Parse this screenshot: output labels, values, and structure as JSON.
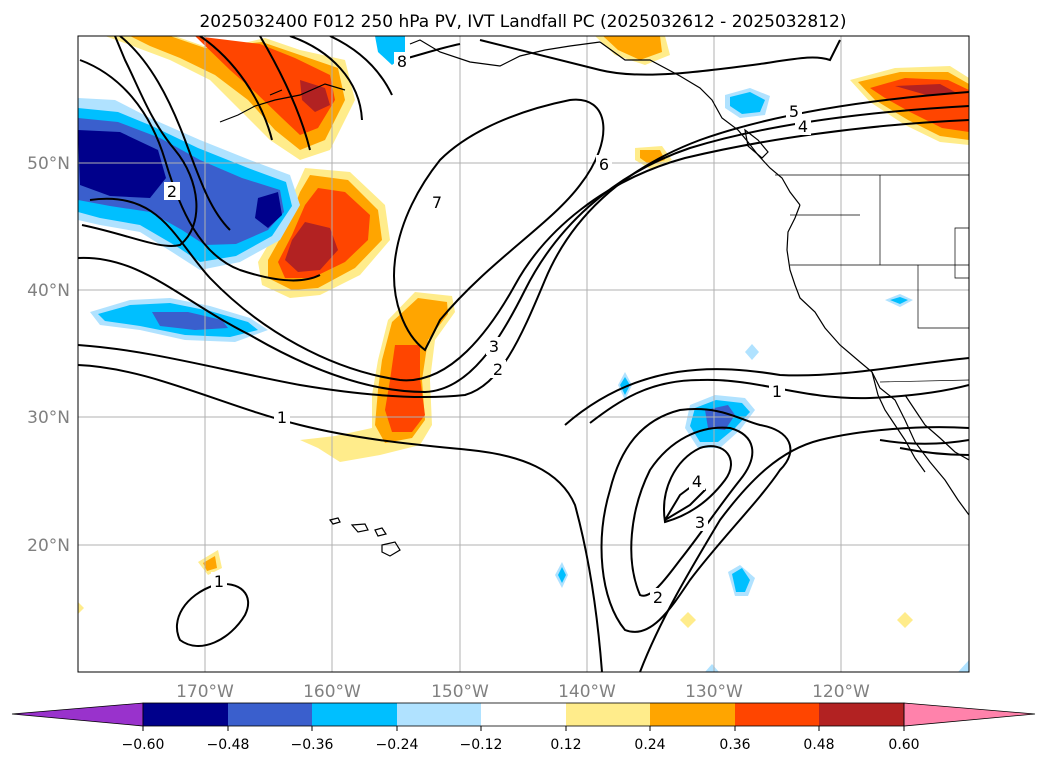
{
  "title": "2025032400 F012 250 hPa PV, IVT Landfall PC (2025032612 - 2025032812)",
  "map": {
    "lon_labels": [
      "170°W",
      "160°W",
      "150°W",
      "140°W",
      "130°W",
      "120°W"
    ],
    "lat_labels": [
      "50°N",
      "40°N",
      "30°N",
      "20°N"
    ],
    "contour_labels": [
      "1",
      "1",
      "1",
      "2",
      "2",
      "2",
      "3",
      "3",
      "4",
      "4",
      "5",
      "6",
      "7",
      "8"
    ]
  },
  "colorbar": {
    "ticks": [
      "−0.60",
      "−0.48",
      "−0.36",
      "−0.24",
      "−0.12",
      "0.12",
      "0.24",
      "0.36",
      "0.48",
      "0.60"
    ],
    "colors": [
      "#9932cc",
      "#00008b",
      "#3a5fcd",
      "#00bfff",
      "#b0e2ff",
      "#ffffff",
      "#ffec8b",
      "#ffa500",
      "#ff4500",
      "#b22222",
      "#ff82ab"
    ]
  }
}
